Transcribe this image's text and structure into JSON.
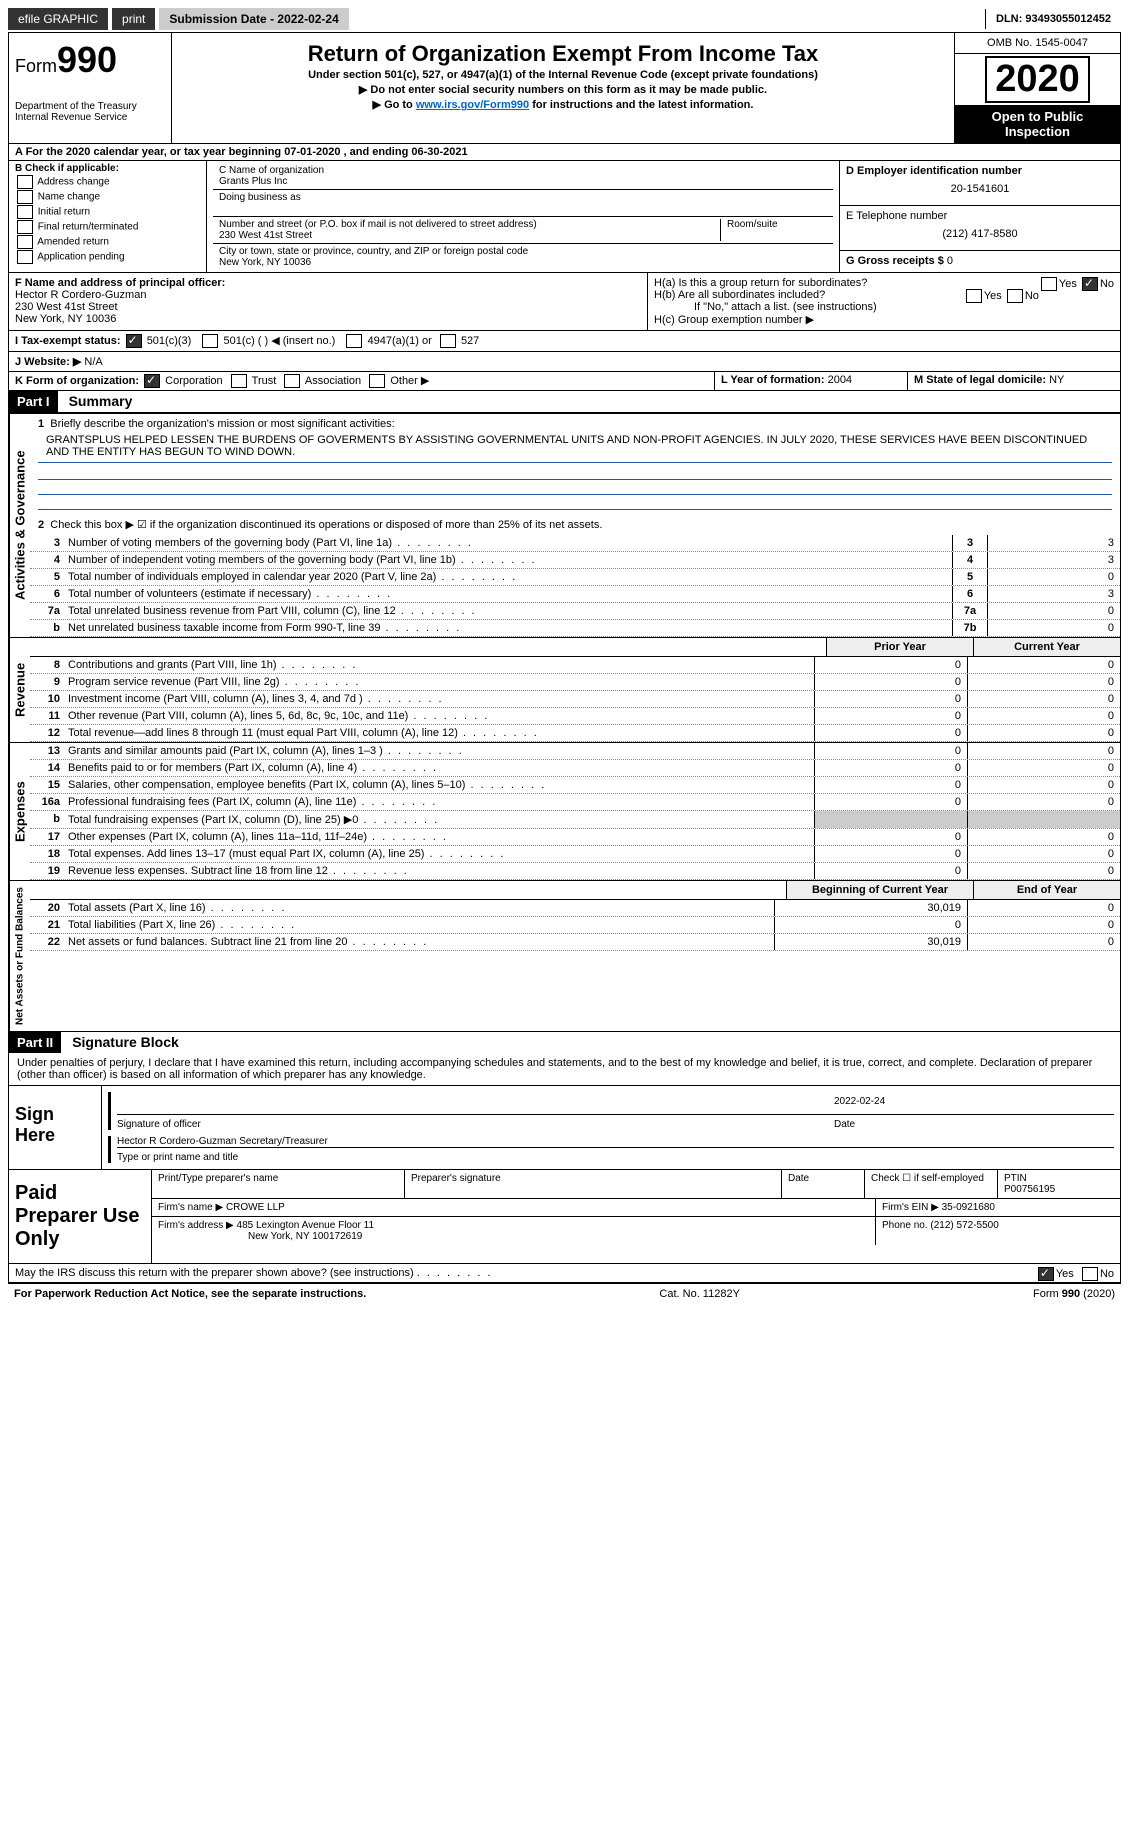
{
  "topbar": {
    "efile": "efile GRAPHIC",
    "print": "print",
    "submission": "Submission Date - 2022-02-24",
    "dln": "DLN: 93493055012452"
  },
  "header": {
    "form_prefix": "Form",
    "form_num": "990",
    "dept": "Department of the Treasury\nInternal Revenue Service",
    "title": "Return of Organization Exempt From Income Tax",
    "sub1": "Under section 501(c), 527, or 4947(a)(1) of the Internal Revenue Code (except private foundations)",
    "sub2": "▶ Do not enter social security numbers on this form as it may be made public.",
    "sub3_pre": "▶ Go to ",
    "sub3_link": "www.irs.gov/Form990",
    "sub3_post": " for instructions and the latest information.",
    "omb": "OMB No. 1545-0047",
    "year": "2020",
    "inspection": "Open to Public Inspection"
  },
  "row_a": "A For the 2020 calendar year, or tax year beginning 07-01-2020   , and ending 06-30-2021",
  "block_b": {
    "title": "B Check if applicable:",
    "opts": [
      "Address change",
      "Name change",
      "Initial return",
      "Final return/terminated",
      "Amended return",
      "Application pending"
    ]
  },
  "block_c": {
    "name_label": "C Name of organization",
    "name": "Grants Plus Inc",
    "dba_label": "Doing business as",
    "addr_label": "Number and street (or P.O. box if mail is not delivered to street address)",
    "room_label": "Room/suite",
    "addr": "230 West 41st Street",
    "city_label": "City or town, state or province, country, and ZIP or foreign postal code",
    "city": "New York, NY  10036"
  },
  "block_d": {
    "label": "D Employer identification number",
    "val": "20-1541601"
  },
  "block_e": {
    "label": "E Telephone number",
    "val": "(212) 417-8580"
  },
  "block_g": {
    "label": "G Gross receipts $",
    "val": "0"
  },
  "block_f": {
    "label": "F Name and address of principal officer:",
    "name": "Hector R Cordero-Guzman",
    "addr1": "230 West 41st Street",
    "addr2": "New York, NY  10036"
  },
  "block_h": {
    "ha": "H(a)  Is this a group return for subordinates?",
    "hb": "H(b)  Are all subordinates included?",
    "hb_note": "If \"No,\" attach a list. (see instructions)",
    "hc": "H(c)  Group exemption number ▶",
    "yes": "Yes",
    "no": "No"
  },
  "block_i": {
    "label": "I  Tax-exempt status:",
    "o1": "501(c)(3)",
    "o2": "501(c) (  ) ◀ (insert no.)",
    "o3": "4947(a)(1) or",
    "o4": "527"
  },
  "block_j": {
    "label": "J  Website: ▶",
    "val": "N/A"
  },
  "block_k": {
    "label": "K Form of organization:",
    "o1": "Corporation",
    "o2": "Trust",
    "o3": "Association",
    "o4": "Other ▶"
  },
  "block_l": {
    "label": "L Year of formation:",
    "val": "2004"
  },
  "block_m": {
    "label": "M State of legal domicile:",
    "val": "NY"
  },
  "part1": {
    "hdr": "Part I",
    "title": "Summary",
    "l1_label": "Briefly describe the organization's mission or most significant activities:",
    "l1_text": "GRANTSPLUS HELPED LESSEN THE BURDENS OF GOVERMENTS BY ASSISTING GOVERNMENTAL UNITS AND NON-PROFIT AGENCIES. IN JULY 2020, THESE SERVICES HAVE BEEN DISCONTINUED AND THE ENTITY HAS BEGUN TO WIND DOWN.",
    "l2": "Check this box ▶ ☑ if the organization discontinued its operations or disposed of more than 25% of its net assets.",
    "lines_gov": [
      {
        "n": "3",
        "t": "Number of voting members of the governing body (Part VI, line 1a)",
        "box": "3",
        "v": "3"
      },
      {
        "n": "4",
        "t": "Number of independent voting members of the governing body (Part VI, line 1b)",
        "box": "4",
        "v": "3"
      },
      {
        "n": "5",
        "t": "Total number of individuals employed in calendar year 2020 (Part V, line 2a)",
        "box": "5",
        "v": "0"
      },
      {
        "n": "6",
        "t": "Total number of volunteers (estimate if necessary)",
        "box": "6",
        "v": "3"
      },
      {
        "n": "7a",
        "t": "Total unrelated business revenue from Part VIII, column (C), line 12",
        "box": "7a",
        "v": "0"
      },
      {
        "n": "b",
        "t": "Net unrelated business taxable income from Form 990-T, line 39",
        "box": "7b",
        "v": "0"
      }
    ],
    "col_prior": "Prior Year",
    "col_curr": "Current Year",
    "lines_rev": [
      {
        "n": "8",
        "t": "Contributions and grants (Part VIII, line 1h)",
        "p": "0",
        "c": "0"
      },
      {
        "n": "9",
        "t": "Program service revenue (Part VIII, line 2g)",
        "p": "0",
        "c": "0"
      },
      {
        "n": "10",
        "t": "Investment income (Part VIII, column (A), lines 3, 4, and 7d )",
        "p": "0",
        "c": "0"
      },
      {
        "n": "11",
        "t": "Other revenue (Part VIII, column (A), lines 5, 6d, 8c, 9c, 10c, and 11e)",
        "p": "0",
        "c": "0"
      },
      {
        "n": "12",
        "t": "Total revenue—add lines 8 through 11 (must equal Part VIII, column (A), line 12)",
        "p": "0",
        "c": "0"
      }
    ],
    "lines_exp": [
      {
        "n": "13",
        "t": "Grants and similar amounts paid (Part IX, column (A), lines 1–3 )",
        "p": "0",
        "c": "0"
      },
      {
        "n": "14",
        "t": "Benefits paid to or for members (Part IX, column (A), line 4)",
        "p": "0",
        "c": "0"
      },
      {
        "n": "15",
        "t": "Salaries, other compensation, employee benefits (Part IX, column (A), lines 5–10)",
        "p": "0",
        "c": "0"
      },
      {
        "n": "16a",
        "t": "Professional fundraising fees (Part IX, column (A), line 11e)",
        "p": "0",
        "c": "0"
      },
      {
        "n": "b",
        "t": "Total fundraising expenses (Part IX, column (D), line 25) ▶0",
        "p": "",
        "c": "",
        "shade": true
      },
      {
        "n": "17",
        "t": "Other expenses (Part IX, column (A), lines 11a–11d, 11f–24e)",
        "p": "0",
        "c": "0"
      },
      {
        "n": "18",
        "t": "Total expenses. Add lines 13–17 (must equal Part IX, column (A), line 25)",
        "p": "0",
        "c": "0"
      },
      {
        "n": "19",
        "t": "Revenue less expenses. Subtract line 18 from line 12",
        "p": "0",
        "c": "0"
      }
    ],
    "col_begin": "Beginning of Current Year",
    "col_end": "End of Year",
    "lines_net": [
      {
        "n": "20",
        "t": "Total assets (Part X, line 16)",
        "p": "30,019",
        "c": "0"
      },
      {
        "n": "21",
        "t": "Total liabilities (Part X, line 26)",
        "p": "0",
        "c": "0"
      },
      {
        "n": "22",
        "t": "Net assets or fund balances. Subtract line 21 from line 20",
        "p": "30,019",
        "c": "0"
      }
    ],
    "side_gov": "Activities & Governance",
    "side_rev": "Revenue",
    "side_exp": "Expenses",
    "side_net": "Net Assets or Fund Balances"
  },
  "part2": {
    "hdr": "Part II",
    "title": "Signature Block",
    "decl": "Under penalties of perjury, I declare that I have examined this return, including accompanying schedules and statements, and to the best of my knowledge and belief, it is true, correct, and complete. Declaration of preparer (other than officer) is based on all information of which preparer has any knowledge.",
    "sign_here": "Sign Here",
    "sig_officer": "Signature of officer",
    "sig_date": "Date",
    "sig_date_val": "2022-02-24",
    "officer_name": "Hector R Cordero-Guzman  Secretary/Treasurer",
    "type_name": "Type or print name and title",
    "paid_prep": "Paid Preparer Use Only",
    "prep_name_label": "Print/Type preparer's name",
    "prep_sig_label": "Preparer's signature",
    "date_label": "Date",
    "selfemp": "Check ☐ if self-employed",
    "ptin_label": "PTIN",
    "ptin": "P00756195",
    "firm_name_label": "Firm's name  ▶",
    "firm_name": "CROWE LLP",
    "firm_ein_label": "Firm's EIN ▶",
    "firm_ein": "35-0921680",
    "firm_addr_label": "Firm's address ▶",
    "firm_addr": "485 Lexington Avenue Floor 11",
    "firm_city": "New York, NY  100172619",
    "phone_label": "Phone no.",
    "phone": "(212) 572-5500",
    "discuss": "May the IRS discuss this return with the preparer shown above? (see instructions)",
    "yes": "Yes",
    "no": "No"
  },
  "footer": {
    "pra": "For Paperwork Reduction Act Notice, see the separate instructions.",
    "cat": "Cat. No. 11282Y",
    "form": "Form 990 (2020)"
  }
}
